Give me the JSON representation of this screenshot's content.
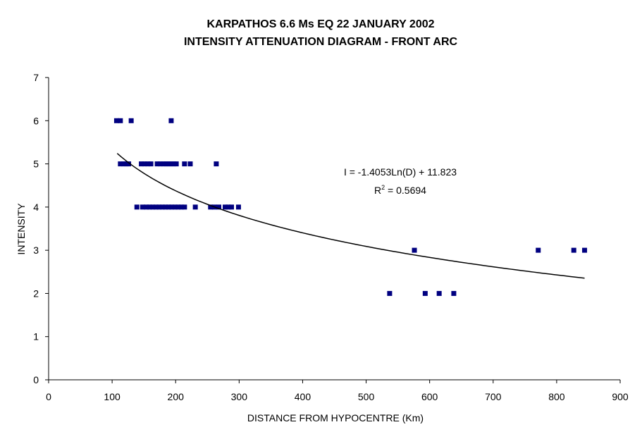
{
  "chart_data": {
    "type": "scatter",
    "title_lines": [
      "KARPATHOS 6.6 Ms EQ 22 JANUARY 2002",
      "INTENSITY ATTENUATION DIAGRAM - FRONT ARC"
    ],
    "xlabel": "DISTANCE FROM HYPOCENTRE (Km)",
    "ylabel": "INTENSITY",
    "xlim": [
      0,
      900
    ],
    "ylim": [
      0,
      7
    ],
    "xticks": [
      "0",
      "100",
      "200",
      "300",
      "400",
      "500",
      "600",
      "700",
      "800",
      "900"
    ],
    "yticks": [
      "0",
      "1",
      "2",
      "3",
      "4",
      "5",
      "6",
      "7"
    ],
    "grid": false,
    "legend": "none",
    "marker_color": "#000080",
    "line_color": "#000000",
    "points": [
      {
        "x": 107,
        "y": 6
      },
      {
        "x": 113,
        "y": 6
      },
      {
        "x": 130,
        "y": 6
      },
      {
        "x": 193,
        "y": 6
      },
      {
        "x": 113,
        "y": 5
      },
      {
        "x": 118,
        "y": 5
      },
      {
        "x": 122,
        "y": 5
      },
      {
        "x": 126,
        "y": 5
      },
      {
        "x": 146,
        "y": 5
      },
      {
        "x": 151,
        "y": 5
      },
      {
        "x": 156,
        "y": 5
      },
      {
        "x": 161,
        "y": 5
      },
      {
        "x": 171,
        "y": 5
      },
      {
        "x": 176,
        "y": 5
      },
      {
        "x": 181,
        "y": 5
      },
      {
        "x": 185,
        "y": 5
      },
      {
        "x": 189,
        "y": 5
      },
      {
        "x": 193,
        "y": 5
      },
      {
        "x": 197,
        "y": 5
      },
      {
        "x": 201,
        "y": 5
      },
      {
        "x": 214,
        "y": 5
      },
      {
        "x": 223,
        "y": 5
      },
      {
        "x": 264,
        "y": 5
      },
      {
        "x": 139,
        "y": 4
      },
      {
        "x": 148,
        "y": 4
      },
      {
        "x": 154,
        "y": 4
      },
      {
        "x": 159,
        "y": 4
      },
      {
        "x": 164,
        "y": 4
      },
      {
        "x": 169,
        "y": 4
      },
      {
        "x": 174,
        "y": 4
      },
      {
        "x": 179,
        "y": 4
      },
      {
        "x": 184,
        "y": 4
      },
      {
        "x": 189,
        "y": 4
      },
      {
        "x": 194,
        "y": 4
      },
      {
        "x": 199,
        "y": 4
      },
      {
        "x": 204,
        "y": 4
      },
      {
        "x": 209,
        "y": 4
      },
      {
        "x": 214,
        "y": 4
      },
      {
        "x": 231,
        "y": 4
      },
      {
        "x": 255,
        "y": 4
      },
      {
        "x": 261,
        "y": 4
      },
      {
        "x": 268,
        "y": 4
      },
      {
        "x": 278,
        "y": 4
      },
      {
        "x": 283,
        "y": 4
      },
      {
        "x": 288,
        "y": 4
      },
      {
        "x": 299,
        "y": 4
      },
      {
        "x": 576,
        "y": 3
      },
      {
        "x": 771,
        "y": 3
      },
      {
        "x": 827,
        "y": 3
      },
      {
        "x": 844,
        "y": 3
      },
      {
        "x": 537,
        "y": 2
      },
      {
        "x": 593,
        "y": 2
      },
      {
        "x": 615,
        "y": 2
      },
      {
        "x": 638,
        "y": 2
      }
    ],
    "trendline": {
      "type": "logarithmic",
      "a": -1.4053,
      "b": 11.823,
      "x_range": [
        108,
        844
      ],
      "equation_label": "I = -1.4053Ln(D) + 11.823",
      "r2_prefix": "R",
      "r2_sup": "2",
      "r2_suffix": " = 0.5694"
    }
  }
}
